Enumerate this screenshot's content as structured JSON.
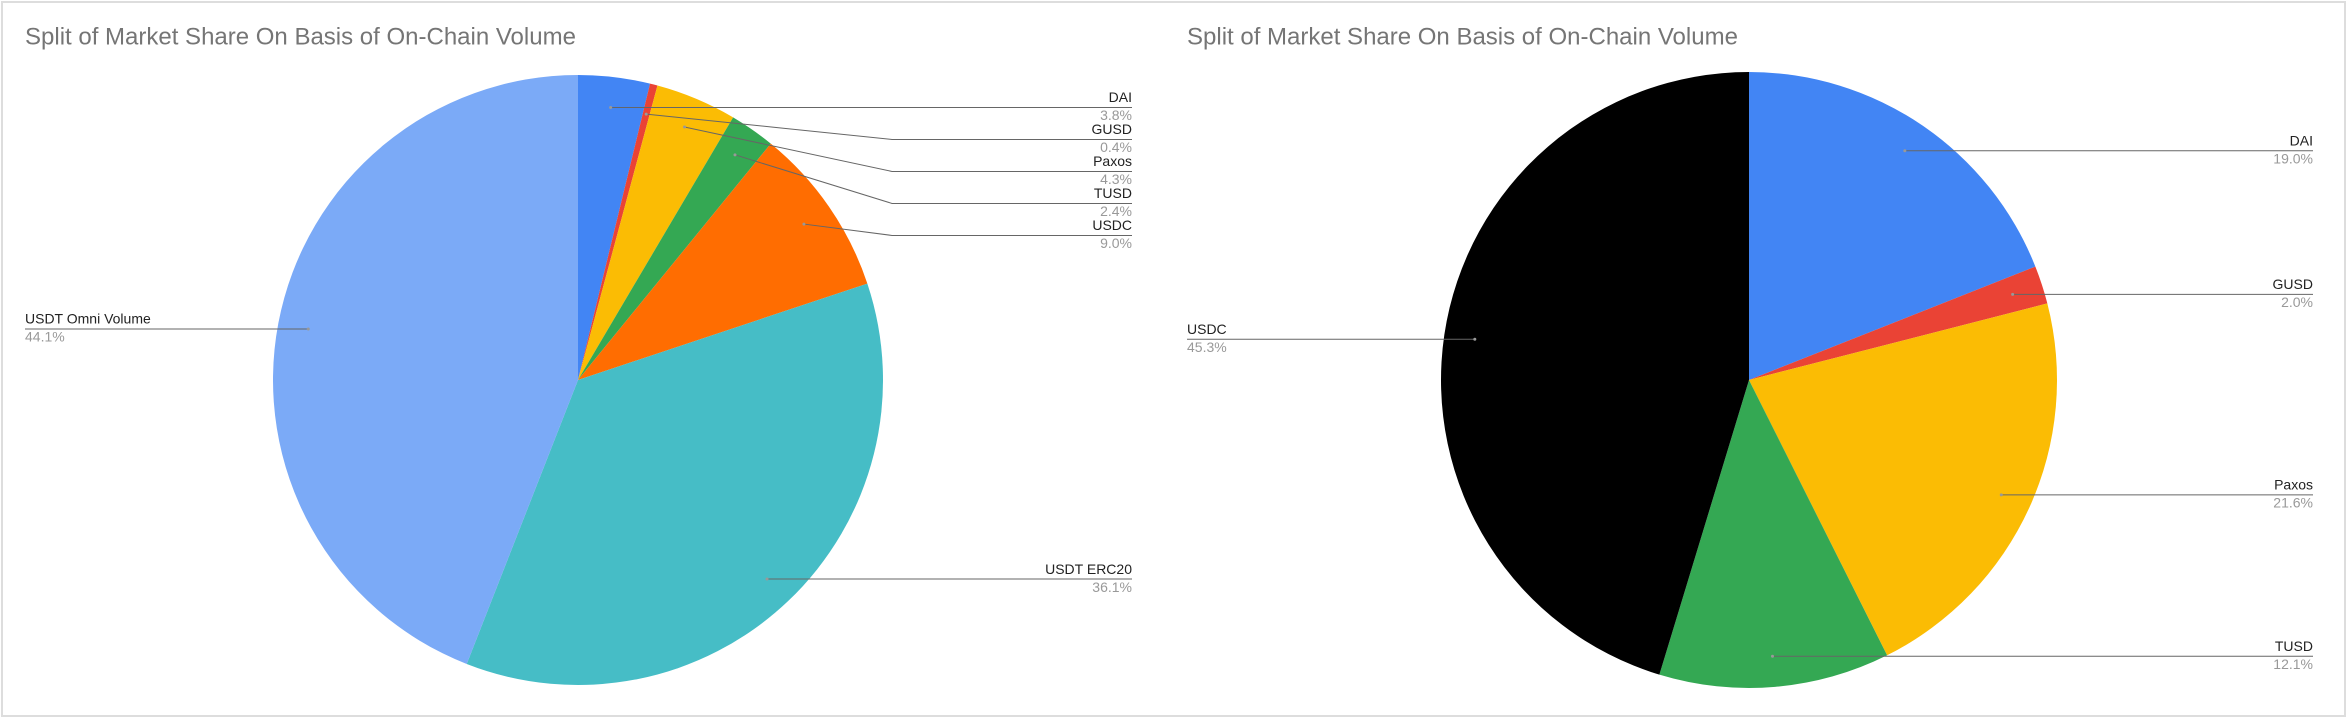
{
  "chart_data": [
    {
      "type": "pie",
      "title": "Split of Market Share On Basis of On-Chain Volume",
      "categories": [
        "DAI",
        "GUSD",
        "Paxos",
        "TUSD",
        "USDC",
        "USDT ERC20",
        "USDT Omni Volume"
      ],
      "values": [
        3.8,
        0.4,
        4.3,
        2.4,
        9.0,
        36.1,
        44.1
      ],
      "value_labels": [
        "3.8%",
        "0.4%",
        "4.3%",
        "2.4%",
        "9.0%",
        "36.1%",
        "44.1%"
      ],
      "colors": [
        "#4285f4",
        "#ea4335",
        "#fbbc04",
        "#34a853",
        "#ff6d01",
        "#46bdc6",
        "#7baaf7"
      ]
    },
    {
      "type": "pie",
      "title": "Split of Market Share On Basis of On-Chain Volume",
      "categories": [
        "DAI",
        "GUSD",
        "Paxos",
        "TUSD",
        "USDC"
      ],
      "values": [
        19.0,
        2.0,
        21.6,
        12.1,
        45.3
      ],
      "value_labels": [
        "19.0%",
        "2.0%",
        "21.6%",
        "12.1%",
        "45.3%"
      ],
      "colors": [
        "#4285f4",
        "#ea4335",
        "#fbbc04",
        "#34a853",
        "#000000"
      ]
    }
  ]
}
